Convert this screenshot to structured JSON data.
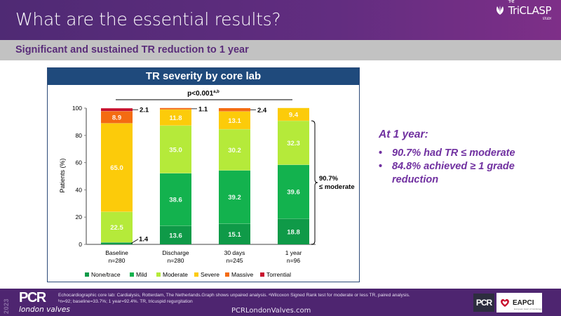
{
  "header": {
    "title": "What are the essential results?",
    "logo": {
      "the": "THE",
      "name": "TriCLASP",
      "study": "STUDY"
    }
  },
  "subheader": {
    "text": "Significant and sustained TR reduction to 1 year"
  },
  "chart_panel": {
    "title": "TR severity by core lab"
  },
  "chart_data": {
    "type": "bar",
    "stacked": true,
    "title": "TR severity by core lab",
    "annotation": "p<0.001",
    "annotation_superscript": "a,b",
    "ylabel": "Patients (%)",
    "xlabel": "",
    "ylim": [
      0,
      100
    ],
    "yticks": [
      0,
      20,
      40,
      60,
      80,
      100
    ],
    "categories": [
      "Baseline",
      "Discharge",
      "30 days",
      "1 year"
    ],
    "category_n": [
      "n=280",
      "n=280",
      "n=245",
      "n=96"
    ],
    "series": [
      {
        "name": "None/trace",
        "color": "#0f9a48",
        "values": [
          1.4,
          13.6,
          15.1,
          18.8
        ]
      },
      {
        "name": "Mild",
        "color": "#13b24e",
        "values": [
          0,
          38.6,
          39.2,
          39.6
        ]
      },
      {
        "name": "Moderate",
        "color": "#b5ea3a",
        "values": [
          22.5,
          35.0,
          30.2,
          32.3
        ]
      },
      {
        "name": "Severe",
        "color": "#fccb0a",
        "values": [
          65.0,
          11.8,
          13.1,
          9.4
        ]
      },
      {
        "name": "Massive",
        "color": "#f46b12",
        "values": [
          8.9,
          1.1,
          2.4,
          0
        ]
      },
      {
        "name": "Torrential",
        "color": "#c8102e",
        "values": [
          2.1,
          0,
          0,
          0
        ]
      }
    ],
    "data_labels": [
      {
        "category": 0,
        "series": 0,
        "text": "1.4",
        "outside": true
      },
      {
        "category": 0,
        "series": 2,
        "text": "22.5"
      },
      {
        "category": 0,
        "series": 3,
        "text": "65.0"
      },
      {
        "category": 0,
        "series": 4,
        "text": "8.9"
      },
      {
        "category": 0,
        "series": 5,
        "text": "2.1",
        "outside": true
      },
      {
        "category": 1,
        "series": 0,
        "text": "13.6"
      },
      {
        "category": 1,
        "series": 1,
        "text": "38.6"
      },
      {
        "category": 1,
        "series": 2,
        "text": "35.0"
      },
      {
        "category": 1,
        "series": 3,
        "text": "11.8"
      },
      {
        "category": 1,
        "series": 4,
        "text": "1.1",
        "outside": true
      },
      {
        "category": 2,
        "series": 0,
        "text": "15.1"
      },
      {
        "category": 2,
        "series": 1,
        "text": "39.2"
      },
      {
        "category": 2,
        "series": 2,
        "text": "30.2"
      },
      {
        "category": 2,
        "series": 3,
        "text": "13.1"
      },
      {
        "category": 2,
        "series": 4,
        "text": "2.4",
        "outside": true
      },
      {
        "category": 3,
        "series": 0,
        "text": "18.8"
      },
      {
        "category": 3,
        "series": 1,
        "text": "39.6"
      },
      {
        "category": 3,
        "series": 2,
        "text": "32.3"
      },
      {
        "category": 3,
        "series": 3,
        "text": "9.4"
      }
    ],
    "bracket": {
      "category": 3,
      "from": 0,
      "to": 90.7,
      "label_line1": "90.7%",
      "label_line2": "≤ moderate"
    },
    "legend": "bottom",
    "grid": false
  },
  "summary": {
    "heading": "At 1 year:",
    "bullets": [
      "90.7% had TR ≤ moderate",
      "84.8% achieved ≥ 1 grade reduction"
    ]
  },
  "footer": {
    "year": "2023",
    "brand": "PCR",
    "brand_sub": "london valves",
    "note_line1": "Echocardiographic core lab: Cardialysis, Rotterdam, The Netherlands.Graph shows unpaired analysis. ᵃWilcoxon Signed Rank test for moderate or less TR, paired analysis.",
    "note_line2": "ᵇn=92; baseline=33.7%; 1 year=92.4%. TR, tricuspid regurgitation",
    "url": "PCRLondonValves.com",
    "logo_pcr": "PCR",
    "logo_eapci": "EAPCI",
    "logo_eapci_sub": "European Heart of Cardiology"
  }
}
